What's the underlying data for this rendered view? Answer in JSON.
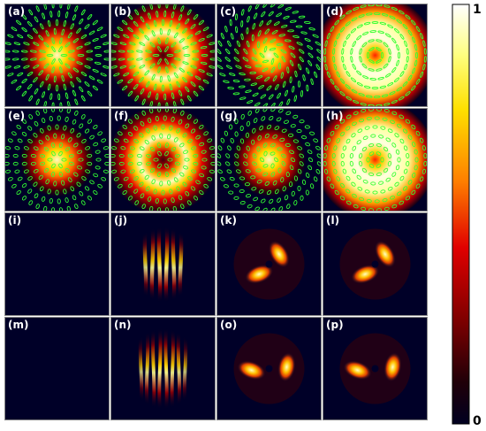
{
  "figure": {
    "panels": [
      {
        "label": "(a)",
        "kind": "polarization-ring",
        "ring": "small",
        "pattern": "radial"
      },
      {
        "label": "(b)",
        "kind": "polarization-ring",
        "ring": "doughnut",
        "pattern": "radial"
      },
      {
        "label": "(c)",
        "kind": "polarization-ring",
        "ring": "small",
        "pattern": "tilted"
      },
      {
        "label": "(d)",
        "kind": "polarization-ring",
        "ring": "wide-doughnut",
        "pattern": "azimuthal"
      },
      {
        "label": "(e)",
        "kind": "polarization-ring",
        "ring": "small",
        "pattern": "radial-ellipse"
      },
      {
        "label": "(f)",
        "kind": "polarization-ring",
        "ring": "doughnut",
        "pattern": "radial-ellipse"
      },
      {
        "label": "(g)",
        "kind": "polarization-ring",
        "ring": "small",
        "pattern": "tilted-ellipse"
      },
      {
        "label": "(h)",
        "kind": "polarization-ring",
        "ring": "wide-doughnut",
        "pattern": "azimuthal-ellipse"
      },
      {
        "label": "(i)",
        "kind": "fringes",
        "density": "sparse"
      },
      {
        "label": "(j)",
        "kind": "fringes",
        "density": "forked"
      },
      {
        "label": "(k)",
        "kind": "twin-lobes",
        "orientation": "left"
      },
      {
        "label": "(l)",
        "kind": "twin-lobes",
        "orientation": "left"
      },
      {
        "label": "(m)",
        "kind": "fringes",
        "density": "round"
      },
      {
        "label": "(n)",
        "kind": "fringes",
        "density": "round-forked"
      },
      {
        "label": "(o)",
        "kind": "twin-lobes",
        "orientation": "tilted"
      },
      {
        "label": "(p)",
        "kind": "twin-lobes",
        "orientation": "tilted"
      }
    ],
    "colorbar": {
      "max_label": "1",
      "min_label": "0",
      "colormap": [
        "#ffffff",
        "#ffff80",
        "#ffe000",
        "#ff8000",
        "#e00000",
        "#800000",
        "#200008",
        "#000020"
      ]
    },
    "colors": {
      "background": "#000028",
      "ellipse": "#33ff33",
      "panel_border": "#888888"
    }
  }
}
